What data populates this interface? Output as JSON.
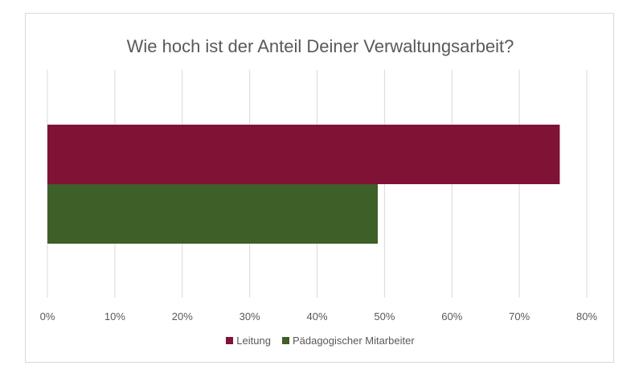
{
  "chart_data": {
    "type": "bar",
    "orientation": "horizontal",
    "title": "Wie hoch ist der Anteil Deiner Verwaltungsarbeit?",
    "xlabel": "",
    "ylabel": "",
    "xlim": [
      0,
      80
    ],
    "x_ticks": [
      "0%",
      "10%",
      "20%",
      "30%",
      "40%",
      "50%",
      "60%",
      "70%",
      "80%"
    ],
    "grid": true,
    "legend_position": "bottom",
    "categories": [
      ""
    ],
    "series": [
      {
        "name": "Leitung",
        "values": [
          76
        ],
        "color": "#7f1235"
      },
      {
        "name": "Pädagogischer Mitarbeiter",
        "values": [
          49
        ],
        "color": "#3e5f28"
      }
    ]
  }
}
